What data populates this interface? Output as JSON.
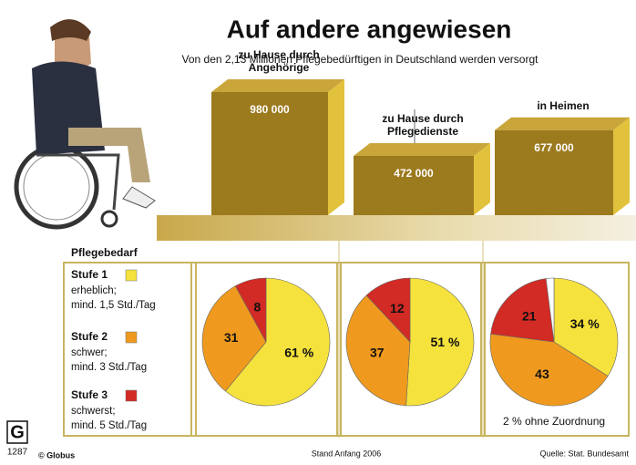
{
  "title": "Auf andere angewiesen",
  "subtitle": "Von den 2,13 Millionen Pflegebedürftigen in Deutschland werden versorgt",
  "legend": {
    "title": "Pflegebedarf",
    "items": [
      {
        "name": "Stufe 1",
        "color": "#f5e23c",
        "lines": [
          "erheblich;",
          "mind. 1,5 Std./Tag"
        ]
      },
      {
        "name": "Stufe 2",
        "color": "#ef9a1e",
        "lines": [
          "schwer;",
          "mind. 3 Std./Tag"
        ]
      },
      {
        "name": "Stufe 3",
        "color": "#d22a24",
        "lines": [
          "schwerst;",
          "mind. 5 Std./Tag"
        ]
      }
    ]
  },
  "chart_data": [
    {
      "type": "bar3d",
      "categories": [
        [
          "zu Hause durch",
          "Angehörige"
        ],
        [
          "zu Hause durch",
          "Pflegedienste"
        ],
        [
          "in Heimen"
        ]
      ],
      "values": [
        980000,
        472000,
        677000
      ],
      "value_labels": [
        "980 000",
        "472 000",
        "677 000"
      ],
      "color": "#9c7a1e"
    },
    {
      "type": "pie",
      "values": [
        61,
        31,
        8
      ],
      "value_labels": [
        "61 %",
        "31",
        "8"
      ],
      "colors": [
        "#f5e23c",
        "#ef9a1e",
        "#d22a24"
      ]
    },
    {
      "type": "pie",
      "values": [
        51,
        37,
        12
      ],
      "value_labels": [
        "51 %",
        "37",
        "12"
      ],
      "colors": [
        "#f5e23c",
        "#ef9a1e",
        "#d22a24"
      ]
    },
    {
      "type": "pie",
      "values": [
        34,
        43,
        21,
        2
      ],
      "value_labels": [
        "34 %",
        "43",
        "21",
        "2 % ohne Zuordnung"
      ],
      "colors": [
        "#f5e23c",
        "#ef9a1e",
        "#d22a24",
        "#ffffff"
      ]
    }
  ],
  "footer": {
    "logo": "G",
    "number": "1287",
    "publisher": "© Globus",
    "date": "Stand Anfang 2006",
    "source": "Quelle: Stat. Bundesamt"
  }
}
